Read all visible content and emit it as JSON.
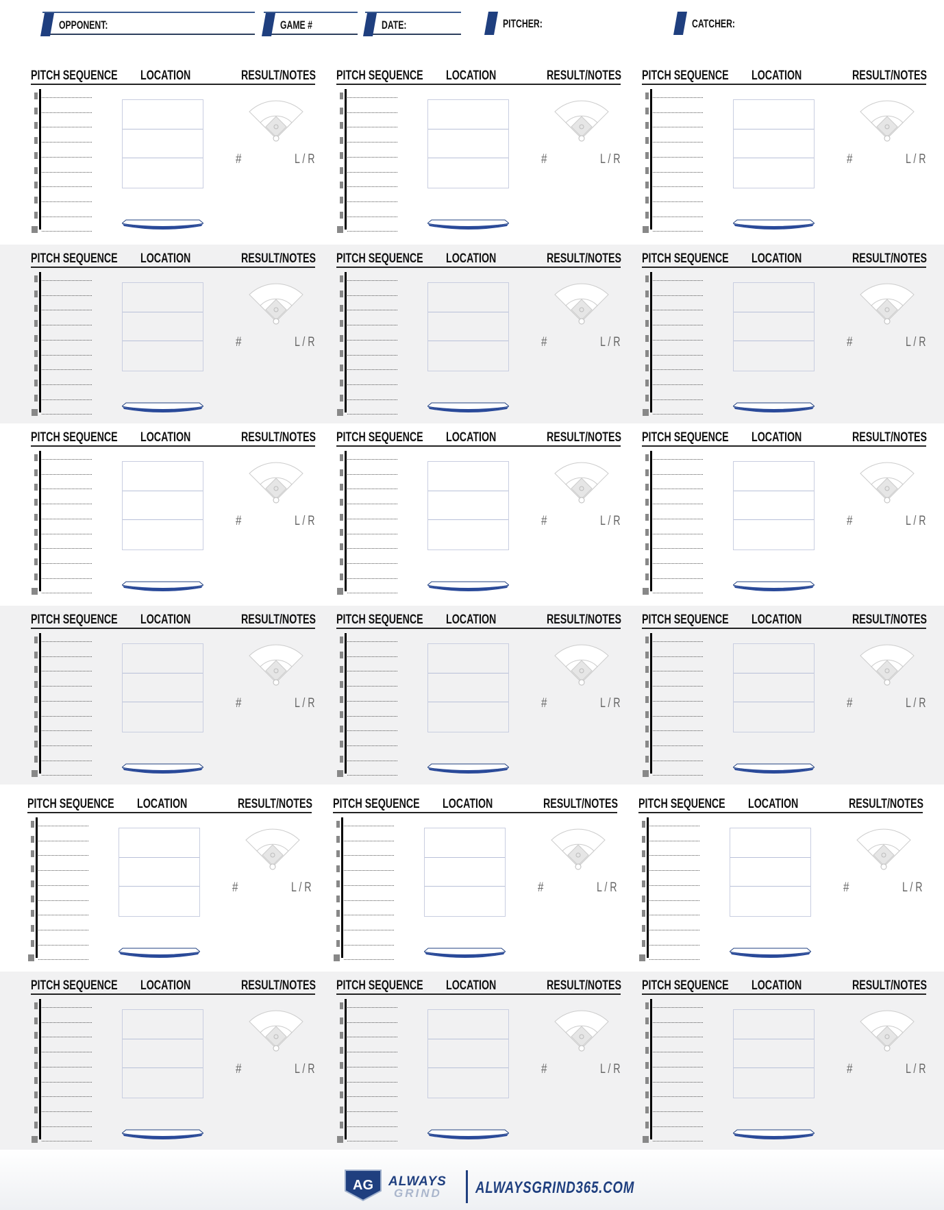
{
  "header": {
    "fields": [
      {
        "label": "OPPONENT:",
        "boxed": true
      },
      {
        "label": "GAME #",
        "boxed": true
      },
      {
        "label": "DATE:",
        "boxed": true
      },
      {
        "label": "PITCHER:",
        "boxed": false
      },
      {
        "label": "CATCHER:",
        "boxed": false
      }
    ],
    "accent_color": "#1f3f7f"
  },
  "cell_labels": {
    "pitch_sequence": "PITCH SEQUENCE",
    "location": "LOCATION",
    "result_notes": "RESULT/NOTES",
    "number": "#",
    "handedness": "L / R"
  },
  "grid": {
    "rows": 6,
    "columns": 3,
    "pitch_lines_per_cell": 10
  },
  "footer": {
    "logo_mark": "AG",
    "logo_word_1": "ALWAYS",
    "logo_word_2": "GRIND",
    "website": "ALWAYSGRIND365.COM"
  }
}
